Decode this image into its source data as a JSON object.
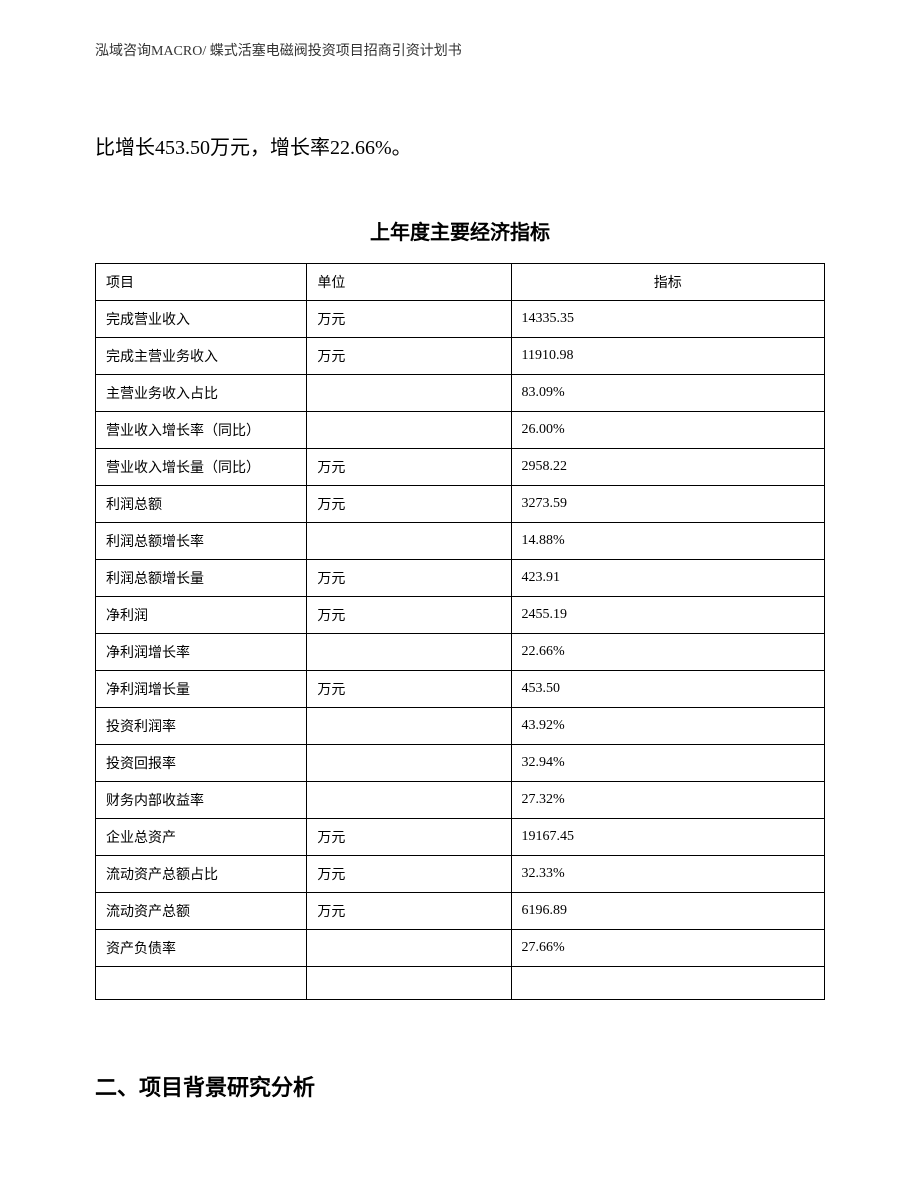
{
  "header": "泓域咨询MACRO/ 蝶式活塞电磁阀投资项目招商引资计划书",
  "body_text": "比增长453.50万元，增长率22.66%。",
  "table": {
    "title": "上年度主要经济指标",
    "columns": [
      "项目",
      "单位",
      "指标"
    ],
    "rows": [
      [
        "完成营业收入",
        "万元",
        "14335.35"
      ],
      [
        "完成主营业务收入",
        "万元",
        "11910.98"
      ],
      [
        "主营业务收入占比",
        "",
        "83.09%"
      ],
      [
        "营业收入增长率（同比）",
        "",
        "26.00%"
      ],
      [
        "营业收入增长量（同比）",
        "万元",
        "2958.22"
      ],
      [
        "利润总额",
        "万元",
        "3273.59"
      ],
      [
        "利润总额增长率",
        "",
        "14.88%"
      ],
      [
        "利润总额增长量",
        "万元",
        "423.91"
      ],
      [
        "净利润",
        "万元",
        "2455.19"
      ],
      [
        "净利润增长率",
        "",
        "22.66%"
      ],
      [
        "净利润增长量",
        "万元",
        "453.50"
      ],
      [
        "投资利润率",
        "",
        "43.92%"
      ],
      [
        "投资回报率",
        "",
        "32.94%"
      ],
      [
        "财务内部收益率",
        "",
        "27.32%"
      ],
      [
        "企业总资产",
        "万元",
        "19167.45"
      ],
      [
        "流动资产总额占比",
        "万元",
        "32.33%"
      ],
      [
        "流动资产总额",
        "万元",
        "6196.89"
      ],
      [
        "资产负债率",
        "",
        "27.66%"
      ]
    ]
  },
  "section_heading": "二、项目背景研究分析"
}
